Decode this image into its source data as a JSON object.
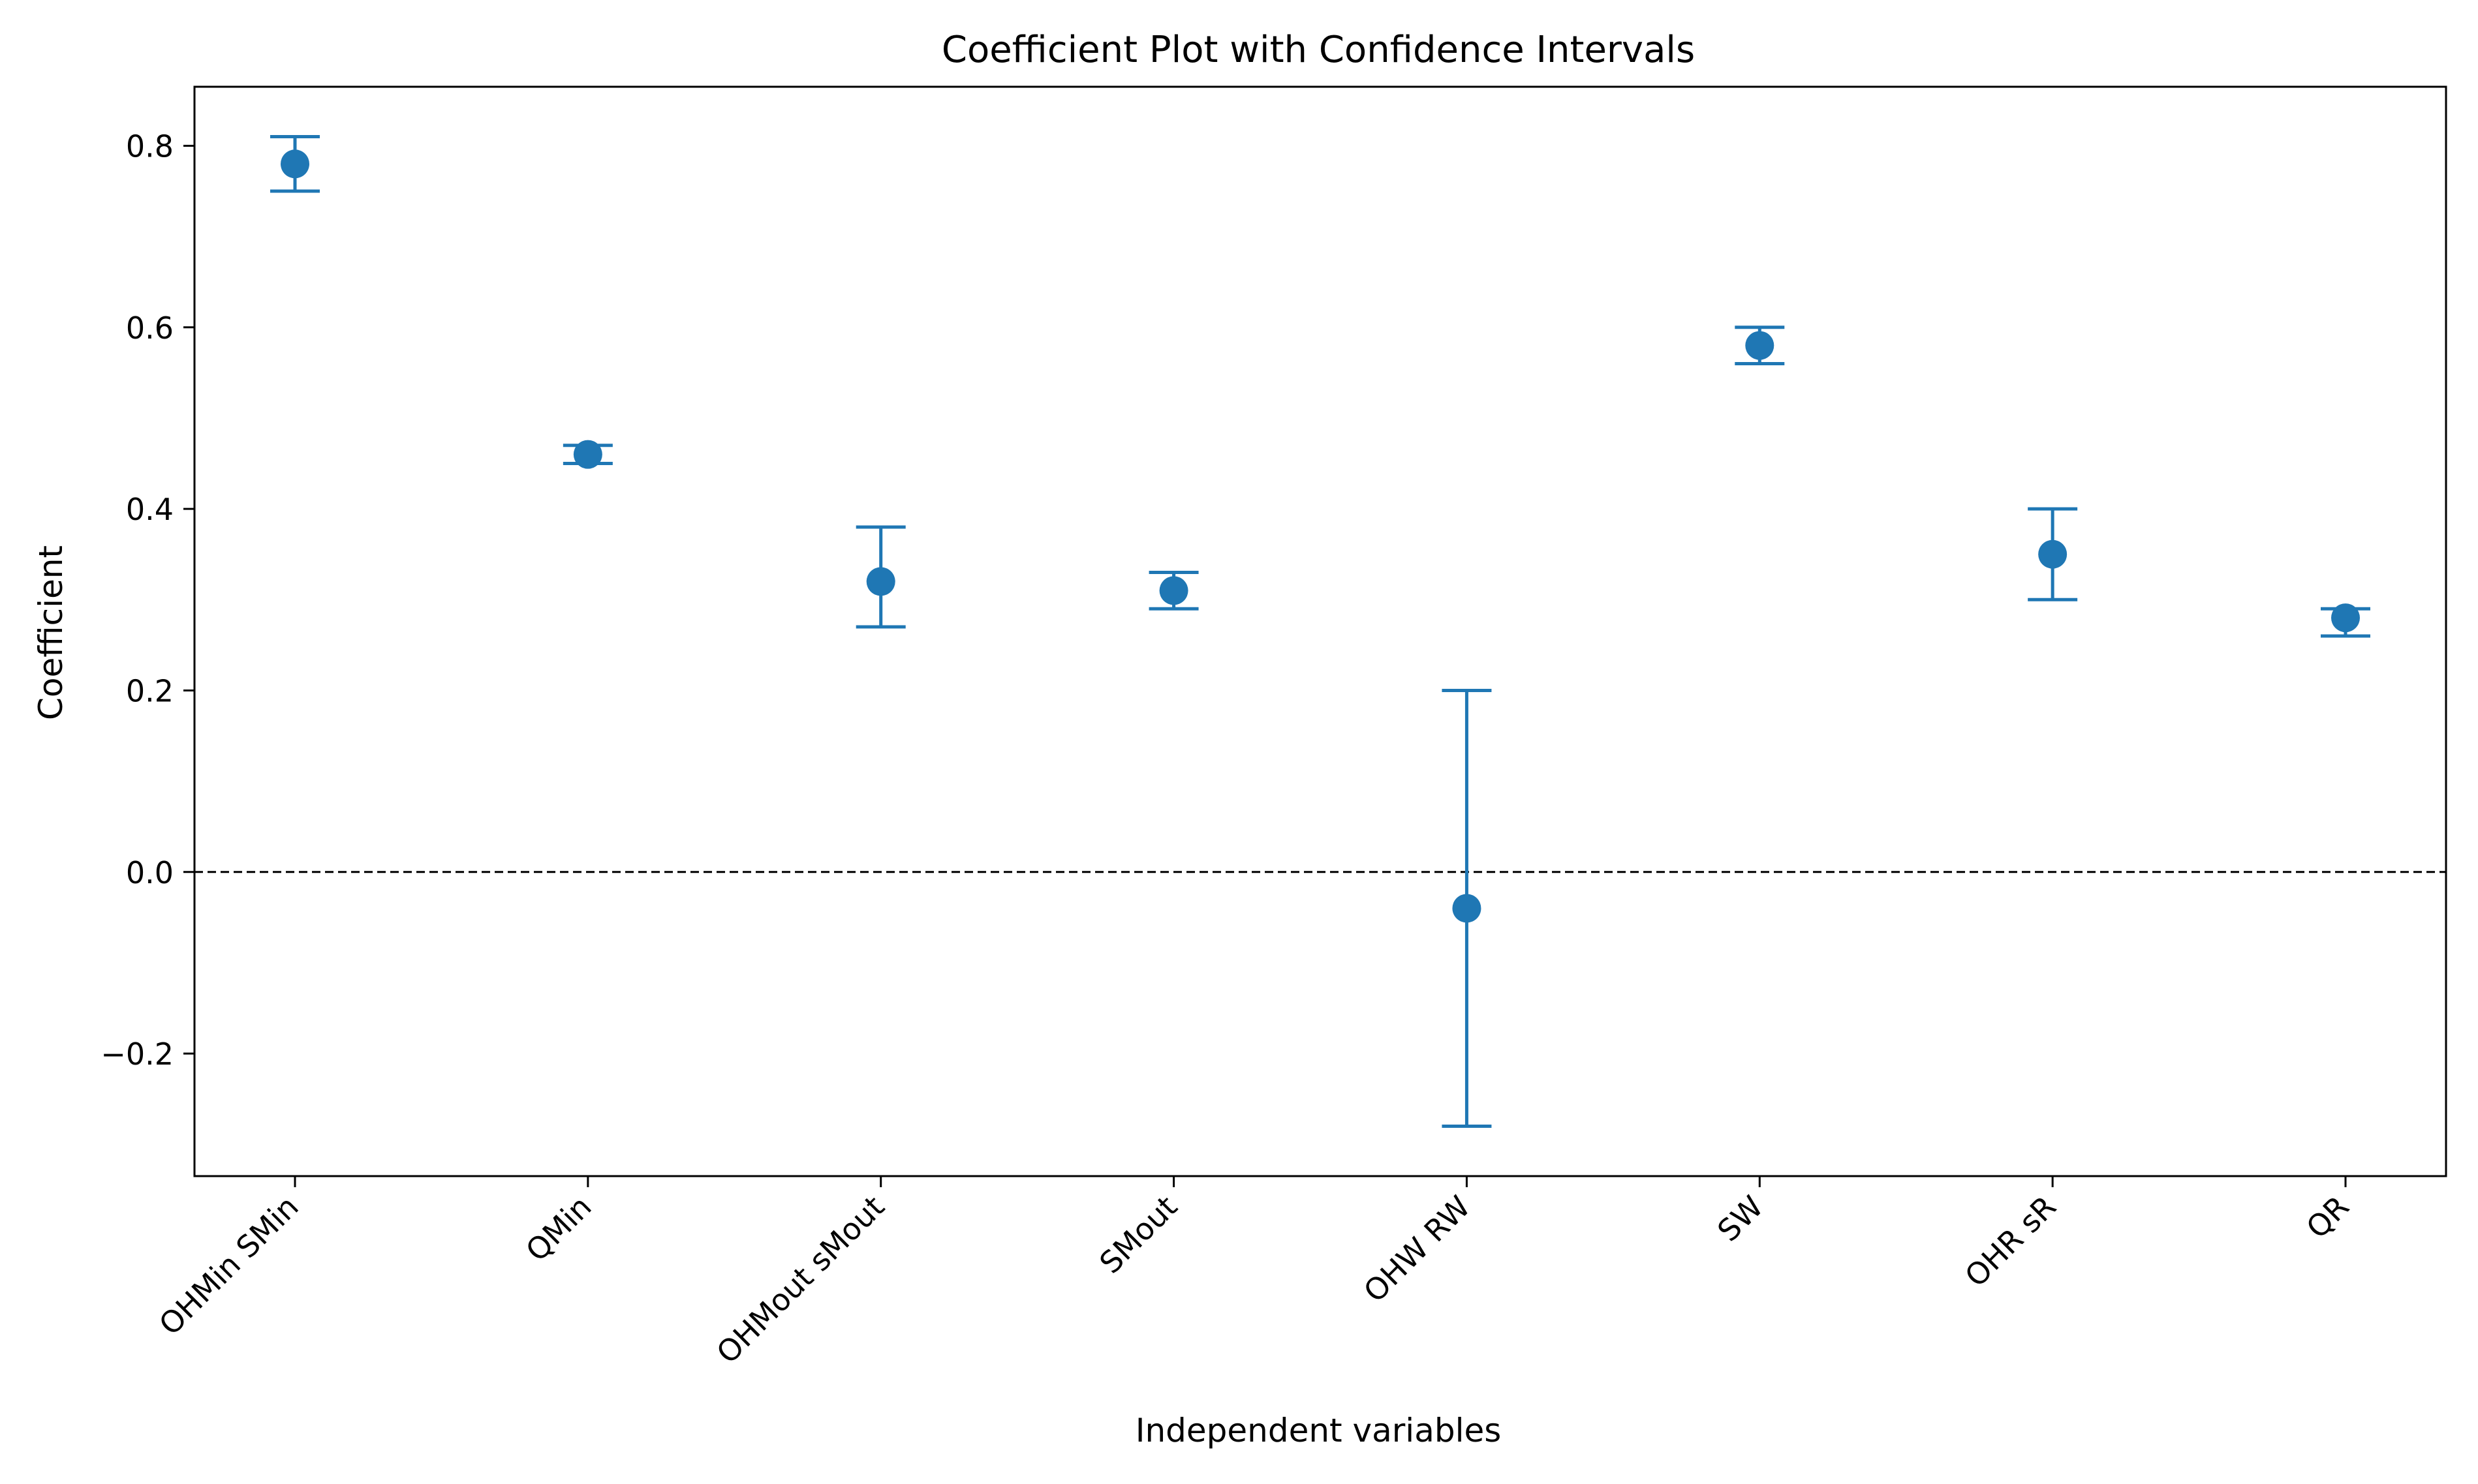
{
  "chart_data": {
    "type": "scatter",
    "title": "Coefficient Plot with Confidence Intervals",
    "xlabel": "Independent variables",
    "ylabel": "Coefficient",
    "categories": [
      "OHMin SMin",
      "QMin",
      "OHMout sMout",
      "SMout",
      "OHW RW",
      "SW",
      "OHR sR",
      "QR"
    ],
    "series": [
      {
        "name": "Coefficient",
        "values": [
          0.78,
          0.46,
          0.32,
          0.31,
          -0.04,
          0.58,
          0.35,
          0.28
        ],
        "ci_lower": [
          0.75,
          0.45,
          0.27,
          0.29,
          -0.28,
          0.56,
          0.3,
          0.26
        ],
        "ci_upper": [
          0.81,
          0.47,
          0.38,
          0.33,
          0.2,
          0.6,
          0.4,
          0.29
        ],
        "color": "#1f77b4"
      }
    ],
    "ylim": [
      -0.335,
      0.865
    ],
    "yticks": [
      -0.2,
      0.0,
      0.2,
      0.4,
      0.6,
      0.8
    ],
    "ytick_labels": [
      "−0.2",
      "0.0",
      "0.2",
      "0.4",
      "0.6",
      "0.8"
    ],
    "reference_line": {
      "y": 0.0,
      "style": "dashed",
      "color": "#000000"
    },
    "grid": false,
    "legend": "none"
  }
}
